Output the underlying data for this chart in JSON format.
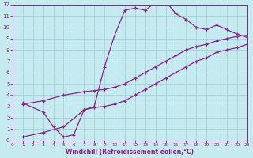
{
  "xlabel": "Windchill (Refroidissement éolien,°C)",
  "bg_color": "#c5eaf0",
  "grid_color": "#9eccd8",
  "line_color": "#882288",
  "xmin": 0,
  "xmax": 23,
  "ymin": 0,
  "ymax": 12,
  "xticks": [
    0,
    1,
    2,
    3,
    4,
    5,
    6,
    7,
    8,
    9,
    10,
    11,
    12,
    13,
    14,
    15,
    16,
    17,
    18,
    19,
    20,
    21,
    22,
    23
  ],
  "yticks": [
    0,
    1,
    2,
    3,
    4,
    5,
    6,
    7,
    8,
    9,
    10,
    11,
    12
  ],
  "curve1_x": [
    1,
    3,
    4,
    5,
    6,
    7,
    8,
    9,
    10,
    11,
    12,
    13,
    14,
    15,
    16,
    17,
    18,
    19,
    20,
    21,
    22,
    23
  ],
  "curve1_y": [
    3.3,
    2.5,
    1.2,
    0.3,
    0.5,
    2.7,
    3.0,
    6.5,
    9.3,
    11.5,
    11.7,
    11.5,
    12.2,
    12.3,
    11.2,
    10.7,
    10.0,
    9.8,
    10.2,
    9.8,
    9.4,
    9.1
  ],
  "curve2_x": [
    1,
    3,
    5,
    7,
    8,
    9,
    10,
    11,
    12,
    13,
    14,
    15,
    16,
    17,
    18,
    19,
    20,
    21,
    22,
    23
  ],
  "curve2_y": [
    3.2,
    3.5,
    4.0,
    4.3,
    4.4,
    4.5,
    4.7,
    5.0,
    5.5,
    6.0,
    6.5,
    7.0,
    7.5,
    8.0,
    8.3,
    8.5,
    8.8,
    9.0,
    9.2,
    9.3
  ],
  "curve3_x": [
    1,
    3,
    5,
    7,
    8,
    9,
    10,
    11,
    12,
    13,
    14,
    15,
    16,
    17,
    18,
    19,
    20,
    21,
    22,
    23
  ],
  "curve3_y": [
    0.3,
    0.7,
    1.2,
    2.7,
    2.9,
    3.0,
    3.2,
    3.5,
    4.0,
    4.5,
    5.0,
    5.5,
    6.0,
    6.5,
    7.0,
    7.3,
    7.8,
    8.0,
    8.2,
    8.5
  ]
}
